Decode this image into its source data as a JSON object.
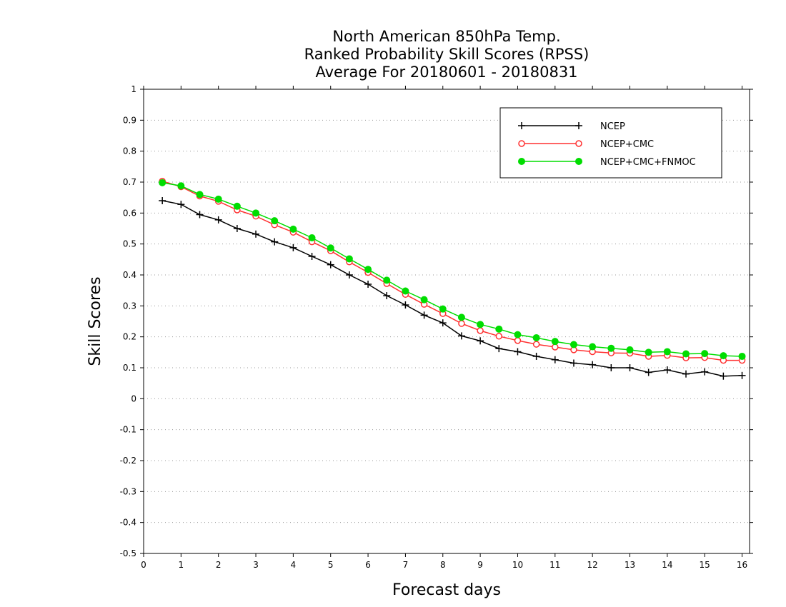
{
  "chart_data": {
    "type": "line",
    "title_lines": [
      "North American 850hPa Temp.",
      "Ranked Probability Skill Scores (RPSS)",
      "Average For 20180601 - 20180831"
    ],
    "xlabel": "Forecast days",
    "ylabel": "Skill Scores",
    "xlim": [
      0,
      16.2
    ],
    "ylim": [
      -0.5,
      1
    ],
    "xticks": [
      "0",
      "1",
      "2",
      "3",
      "4",
      "5",
      "6",
      "7",
      "8",
      "9",
      "10",
      "11",
      "12",
      "13",
      "14",
      "15",
      "16"
    ],
    "yticks": [
      "1",
      "0.9",
      "0.8",
      "0.7",
      "0.6",
      "0.5",
      "0.4",
      "0.3",
      "0.2",
      "0.1",
      "0",
      "-0.1",
      "-0.2",
      "-0.3",
      "-0.4",
      "-0.5"
    ],
    "grid": "horizontal dotted",
    "legend_position": "top-right",
    "x": [
      0.5,
      1.0,
      1.5,
      2.0,
      2.5,
      3.0,
      3.5,
      4.0,
      4.5,
      5.0,
      5.5,
      6.0,
      6.5,
      7.0,
      7.5,
      8.0,
      8.5,
      9.0,
      9.5,
      10.0,
      10.5,
      11.0,
      11.5,
      12.0,
      12.5,
      13.0,
      13.5,
      14.0,
      14.5,
      15.0,
      15.5,
      16.0
    ],
    "series": [
      {
        "name": "NCEP",
        "color": "#000000",
        "marker": "plus",
        "values": [
          0.64,
          0.628,
          0.595,
          0.578,
          0.55,
          0.532,
          0.507,
          0.488,
          0.46,
          0.433,
          0.4,
          0.37,
          0.333,
          0.303,
          0.27,
          0.245,
          0.203,
          0.187,
          0.162,
          0.152,
          0.137,
          0.126,
          0.115,
          0.11,
          0.1,
          0.1,
          0.085,
          0.093,
          0.08,
          0.087,
          0.073,
          0.075
        ]
      },
      {
        "name": "NCEP+CMC",
        "color": "#ff3030",
        "marker": "open-circle",
        "values": [
          0.703,
          0.685,
          0.655,
          0.638,
          0.61,
          0.59,
          0.562,
          0.538,
          0.507,
          0.478,
          0.442,
          0.408,
          0.372,
          0.337,
          0.305,
          0.275,
          0.243,
          0.22,
          0.202,
          0.188,
          0.176,
          0.167,
          0.158,
          0.152,
          0.148,
          0.147,
          0.137,
          0.14,
          0.132,
          0.133,
          0.124,
          0.124
        ]
      },
      {
        "name": "NCEP+CMC+FNMOC",
        "color": "#00dd00",
        "marker": "filled-circle",
        "values": [
          0.698,
          0.688,
          0.66,
          0.645,
          0.622,
          0.6,
          0.575,
          0.548,
          0.52,
          0.487,
          0.452,
          0.418,
          0.383,
          0.348,
          0.32,
          0.29,
          0.263,
          0.24,
          0.225,
          0.207,
          0.197,
          0.185,
          0.175,
          0.168,
          0.163,
          0.158,
          0.15,
          0.152,
          0.145,
          0.146,
          0.139,
          0.137
        ]
      }
    ]
  }
}
